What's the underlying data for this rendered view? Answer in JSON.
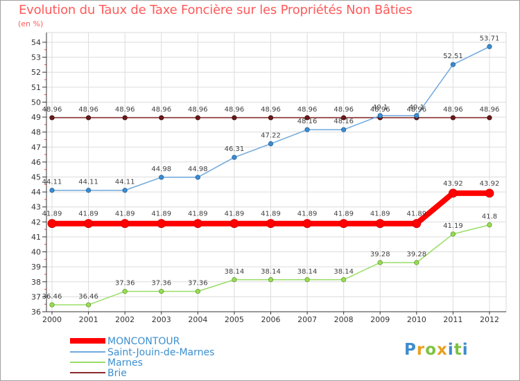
{
  "header": {
    "title": "Evolution du Taux de Taxe Foncière sur les Propriétés Non Bâties",
    "unit": "(en %)"
  },
  "brand": {
    "letters": [
      "P",
      "r",
      "o",
      "x",
      "i",
      "t",
      "i"
    ]
  },
  "colors": {
    "title": "#ff5a5a",
    "moncontour": "#ff0000",
    "saint_jouin": "#6fa8dc",
    "marnes": "#99dd66",
    "brie": "#8b2a2a",
    "legend_text": "#3b8fd0",
    "brand_letters": [
      "#3d8ccf",
      "#e8a020",
      "#7cc242",
      "#e8a020",
      "#3d8ccf",
      "#7cc242",
      "#3d8ccf"
    ]
  },
  "chart_data": {
    "type": "line",
    "title": "Evolution du Taux de Taxe Foncière sur les Propriétés Non Bâties",
    "ylabel": "(en %)",
    "xlabel": "",
    "categories": [
      "2000",
      "2001",
      "2002",
      "2003",
      "2004",
      "2005",
      "2006",
      "2007",
      "2008",
      "2009",
      "2010",
      "2011",
      "2012"
    ],
    "ylim": [
      36,
      54
    ],
    "yticks": [
      "36",
      "37",
      "38",
      "39",
      "40",
      "41",
      "42",
      "43",
      "44",
      "45",
      "46",
      "47",
      "48",
      "49",
      "50",
      "51",
      "52",
      "53",
      "54"
    ],
    "grid": true,
    "series": [
      {
        "name": "MONCONTOUR",
        "key": "moncontour",
        "values": [
          41.89,
          41.89,
          41.89,
          41.89,
          41.89,
          41.89,
          41.89,
          41.89,
          41.89,
          41.89,
          41.89,
          43.92,
          43.92
        ],
        "labels": [
          "41.89",
          "41.89",
          "41.89",
          "41.89",
          "41.89",
          "41.89",
          "41.89",
          "41.89",
          "41.89",
          "41.89",
          "41.89",
          "43.92",
          "43.92"
        ]
      },
      {
        "name": "Saint-Jouin-de-Marnes",
        "key": "saint_jouin",
        "values": [
          44.11,
          44.11,
          44.11,
          44.98,
          44.98,
          46.31,
          47.22,
          48.16,
          48.16,
          49.1,
          49.1,
          52.51,
          53.71
        ],
        "labels": [
          "44.11",
          "44.11",
          "44.11",
          "44.98",
          "44.98",
          "46.31",
          "47.22",
          "48.16",
          "48.16",
          "49.1",
          "49.1",
          "52.51",
          "53.71"
        ]
      },
      {
        "name": "Marnes",
        "key": "marnes",
        "values": [
          36.46,
          36.46,
          37.36,
          37.36,
          37.36,
          38.14,
          38.14,
          38.14,
          38.14,
          39.28,
          39.28,
          41.19,
          41.8
        ],
        "labels": [
          "36.46",
          "36.46",
          "37.36",
          "37.36",
          "37.36",
          "38.14",
          "38.14",
          "38.14",
          "38.14",
          "39.28",
          "39.28",
          "41.19",
          "41.8"
        ]
      },
      {
        "name": "Brie",
        "key": "brie",
        "values": [
          48.96,
          48.96,
          48.96,
          48.96,
          48.96,
          48.96,
          48.96,
          48.96,
          48.96,
          48.96,
          48.96,
          48.96,
          48.96
        ],
        "labels": [
          "48.96",
          "48.96",
          "48.96",
          "48.96",
          "48.96",
          "48.96",
          "48.96",
          "48.96",
          "48.96",
          "48.96",
          "48.96",
          "48.96",
          "48.96"
        ]
      }
    ],
    "legend": [
      "MONCONTOUR",
      "Saint-Jouin-de-Marnes",
      "Marnes",
      "Brie"
    ],
    "legend_position": "bottom-left"
  }
}
